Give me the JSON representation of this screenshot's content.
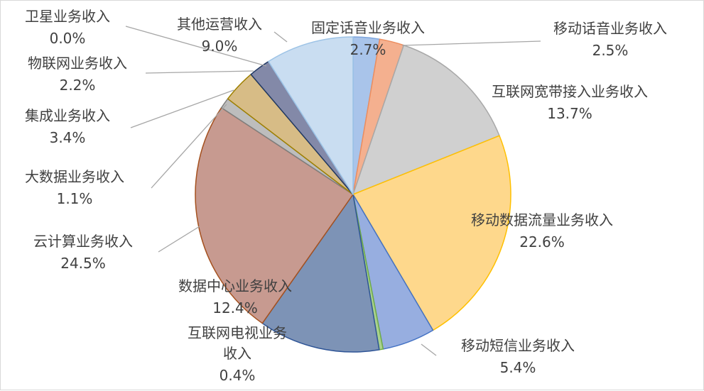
{
  "chart_data": {
    "type": "pie",
    "title": "",
    "slices": [
      {
        "label": "固定话音业务收入",
        "display": "2.7%",
        "value": 2.7,
        "color": "#a9c4ea",
        "stroke": "#7ea6de"
      },
      {
        "label": "移动话音业务收入",
        "display": "2.5%",
        "value": 2.5,
        "color": "#f4b08f",
        "stroke": "#ed8d5e"
      },
      {
        "label": "互联网宽带接入业务收入",
        "display": "13.7%",
        "value": 13.7,
        "color": "#d0d0d0",
        "stroke": "#a8a8a8"
      },
      {
        "label": "移动数据流量业务收入",
        "display": "22.6%",
        "value": 22.6,
        "color": "#fed88c",
        "stroke": "#ffc000"
      },
      {
        "label": "移动短信业务收入",
        "display": "5.4%",
        "value": 5.4,
        "color": "#97aee0",
        "stroke": "#4472c4"
      },
      {
        "label": "互联网电视业务收入",
        "display": "0.4%",
        "value": 0.4,
        "color": "#a9d18e",
        "stroke": "#70ad47"
      },
      {
        "label": "数据中心业务收入",
        "display": "12.4%",
        "value": 12.4,
        "color": "#7d93b6",
        "stroke": "#2f5597"
      },
      {
        "label": "云计算业务收入",
        "display": "24.5%",
        "value": 24.5,
        "color": "#c79a90",
        "stroke": "#a5511f"
      },
      {
        "label": "大数据业务收入",
        "display": "1.1%",
        "value": 1.1,
        "color": "#bdbdbd",
        "stroke": "#7f7f7f"
      },
      {
        "label": "集成业务收入",
        "display": "3.4%",
        "value": 3.4,
        "color": "#d7bc86",
        "stroke": "#9e8000"
      },
      {
        "label": "物联网业务收入",
        "display": "2.2%",
        "value": 2.2,
        "color": "#8389a8",
        "stroke": "#203864"
      },
      {
        "label": "卫星业务收入",
        "display": "0.0%",
        "value": 0.0,
        "color": "#c9d9ef",
        "stroke": "#9dc3e6"
      },
      {
        "label": "其他运营收入",
        "display": "9.0%",
        "value": 9.0,
        "color": "#c9ddf1",
        "stroke": "#9dc3e6"
      }
    ]
  }
}
